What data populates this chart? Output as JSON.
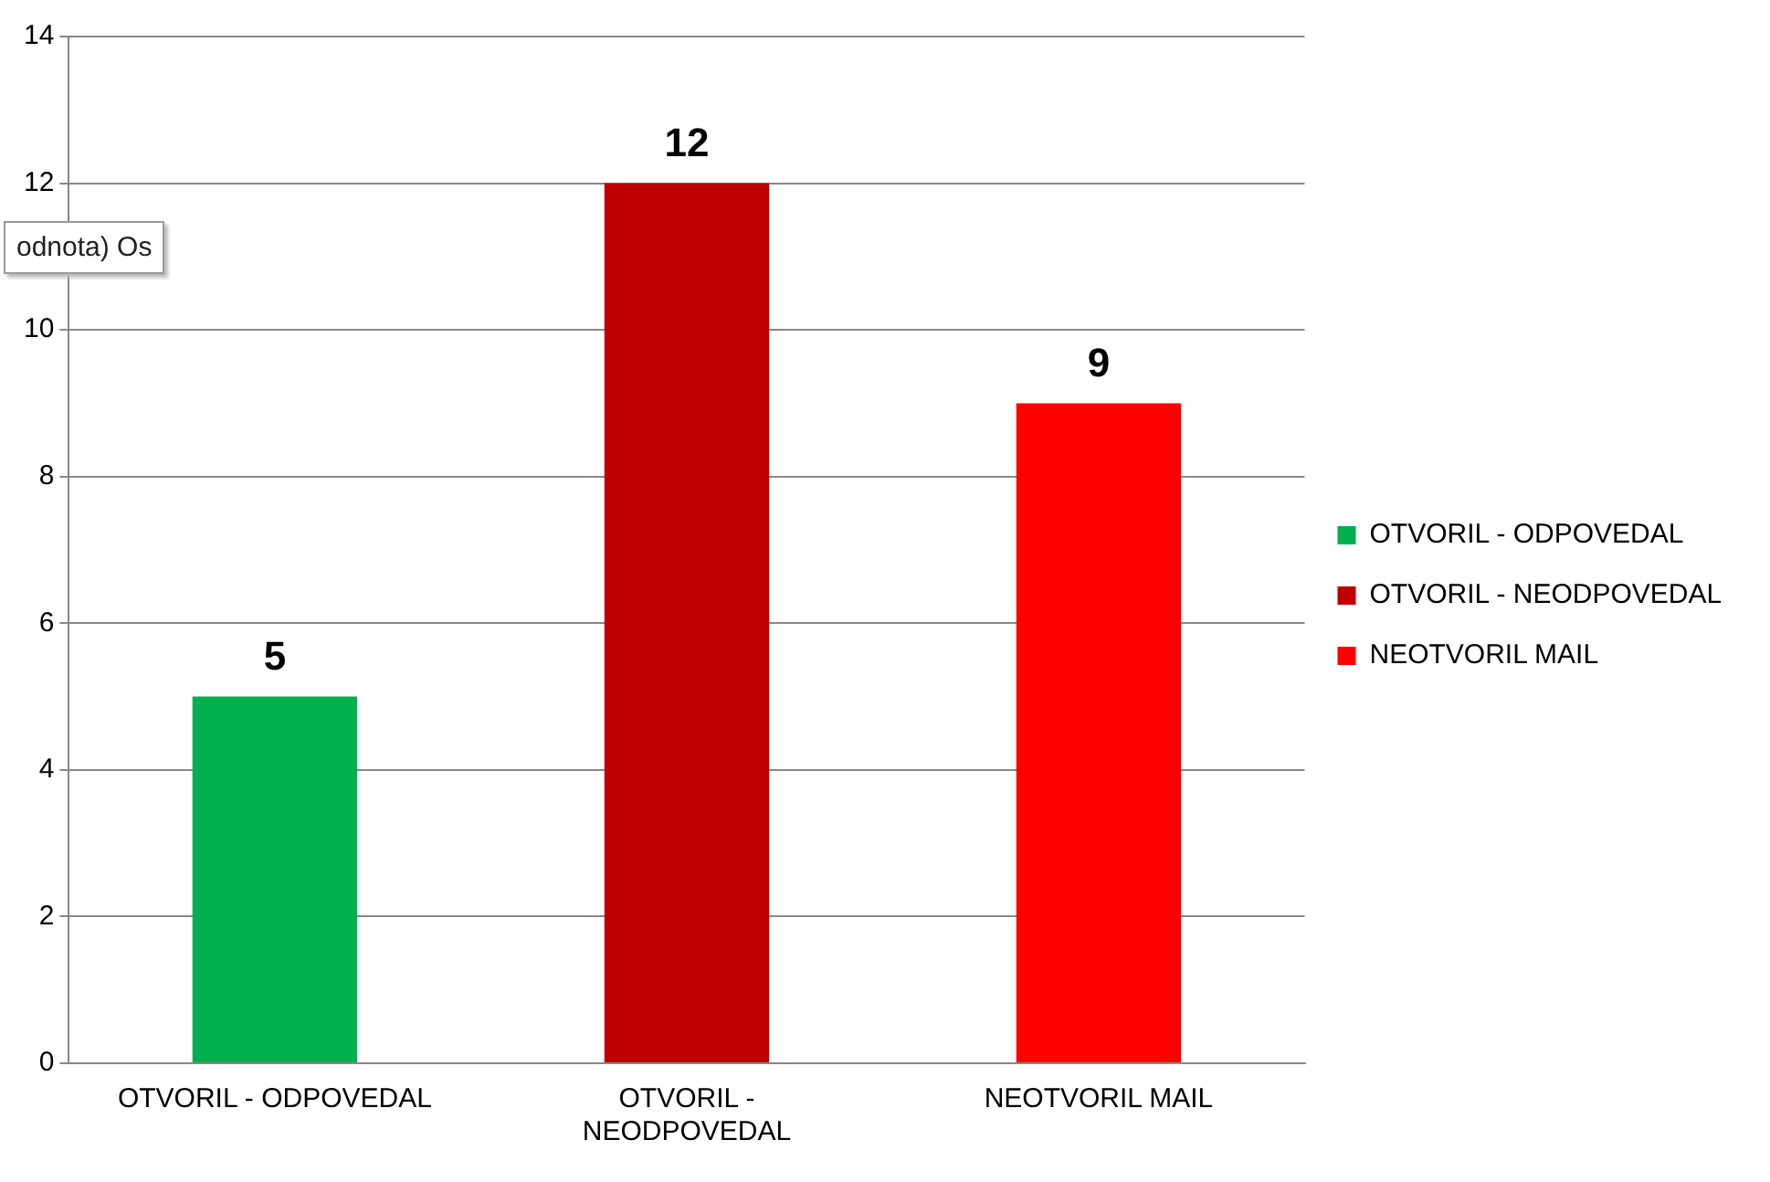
{
  "chart_data": {
    "type": "bar",
    "categories": [
      "OTVORIL - ODPOVEDAL",
      "OTVORIL - NEODPOVEDAL",
      "NEOTVORIL MAIL"
    ],
    "series": [
      {
        "name": "OTVORIL - ODPOVEDAL",
        "color": "#00b050",
        "values": [
          5,
          null,
          null
        ]
      },
      {
        "name": "OTVORIL - NEODPOVEDAL",
        "color": "#c00000",
        "values": [
          null,
          12,
          null
        ]
      },
      {
        "name": "NEOTVORIL MAIL",
        "color": "#ff0000",
        "values": [
          null,
          null,
          9
        ]
      }
    ],
    "ylim": [
      0,
      14
    ],
    "yticks": [
      0,
      2,
      4,
      6,
      8,
      10,
      12,
      14
    ],
    "grid": "y",
    "legend": "right",
    "data_labels": true,
    "annotations": [
      "odnota) Os"
    ]
  }
}
